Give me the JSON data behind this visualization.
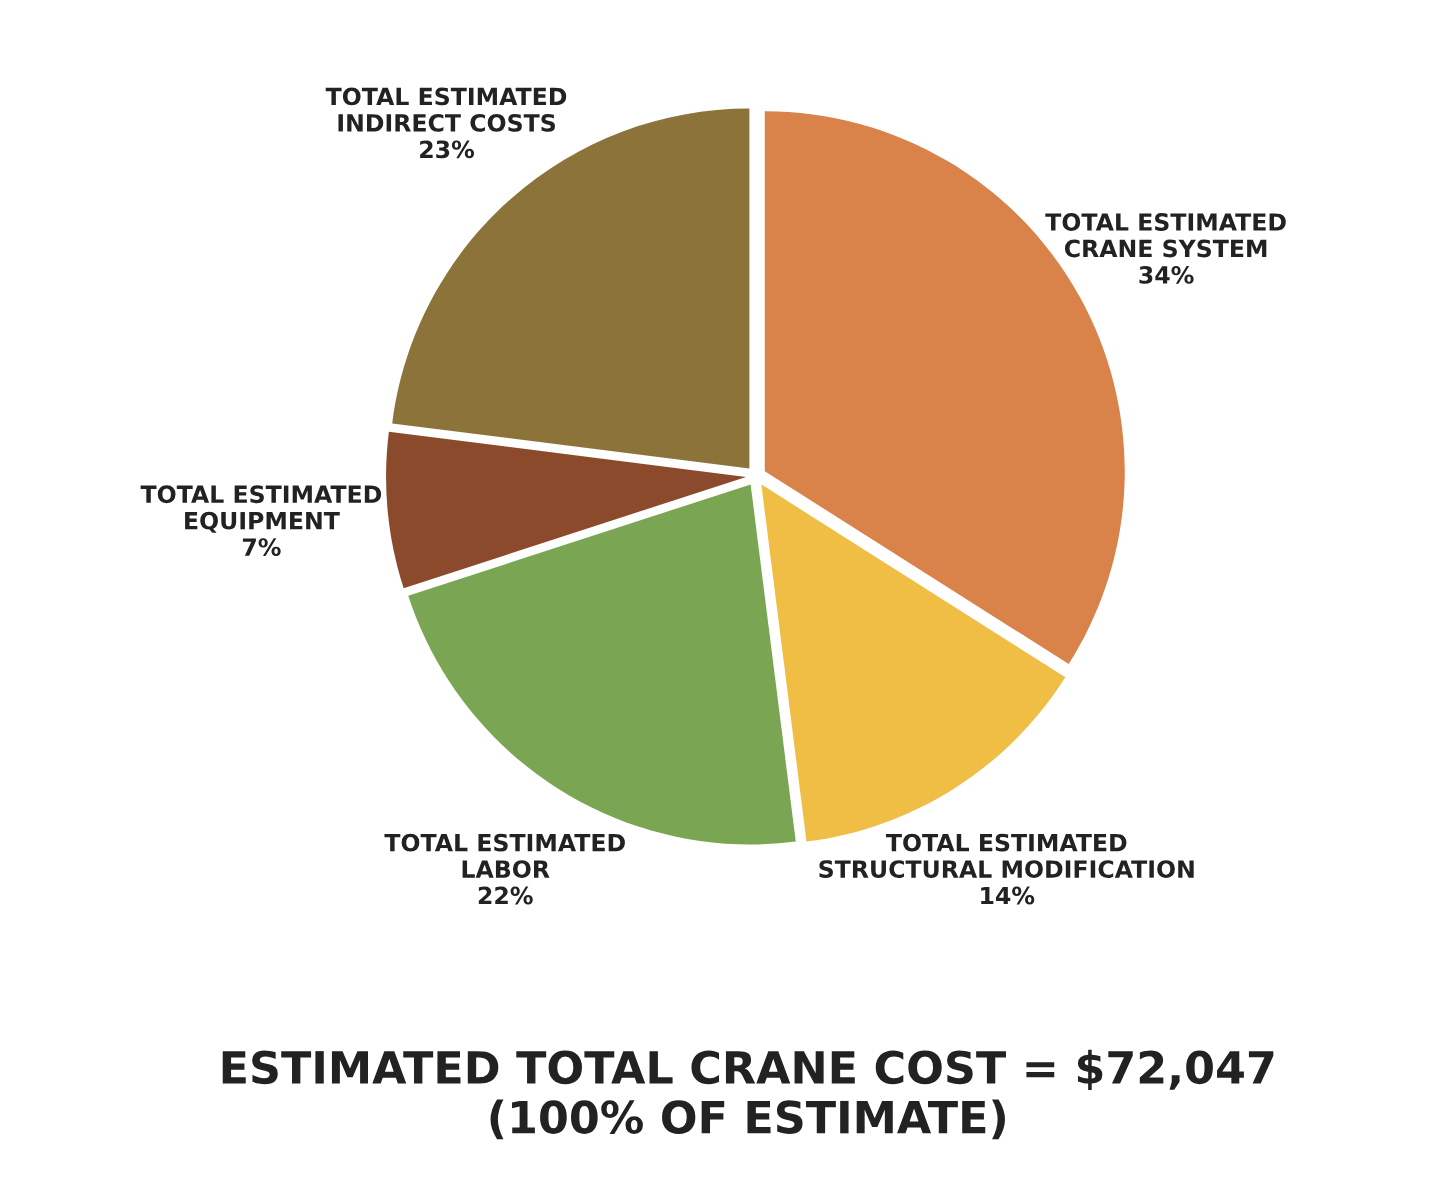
{
  "chart_data": {
    "type": "pie",
    "title": "ESTIMATED TOTAL CRANE COST = $72,047\n(100% OF ESTIMATE)",
    "categories": [
      "TOTAL ESTIMATED\nCRANE SYSTEM",
      "TOTAL ESTIMATED\nSTRUCTURAL MODIFICATION",
      "TOTAL ESTIMATED\nLABOR",
      "TOTAL ESTIMATED\nEQUIPMENT",
      "TOTAL ESTIMATED\nINDIRECT COSTS"
    ],
    "values": [
      34,
      14,
      22,
      7,
      23
    ],
    "value_labels": [
      "34%",
      "14%",
      "22%",
      "7%",
      "23%"
    ],
    "colors": [
      "#d9824a",
      "#f0bd45",
      "#7aa553",
      "#8b4a2b",
      "#8c7339"
    ],
    "legend": false
  }
}
